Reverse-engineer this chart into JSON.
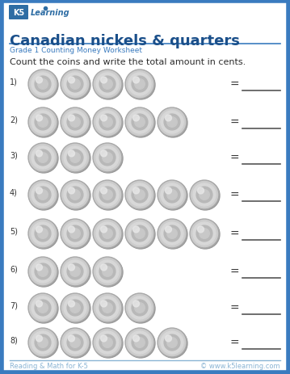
{
  "title": "Canadian nickels & quarters",
  "subtitle": "Grade 1 Counting Money Worksheet",
  "instruction": "Count the coins and write the total amount in cents.",
  "footer_left": "Reading & Math for K-5",
  "footer_right": "© www.k5learning.com",
  "background_color": "#ffffff",
  "border_color": "#3a7bbf",
  "title_color": "#1a4f8a",
  "subtitle_color": "#3a7bbf",
  "footer_color": "#8ab4d4",
  "rows": [
    {
      "num": "1)",
      "coins": 4
    },
    {
      "num": "2)",
      "coins": 5
    },
    {
      "num": "3)",
      "coins": 3
    },
    {
      "num": "4)",
      "coins": 6
    },
    {
      "num": "5)",
      "coins": 6
    },
    {
      "num": "6)",
      "coins": 3
    },
    {
      "num": "7)",
      "coins": 4
    },
    {
      "num": "8)",
      "coins": 5
    }
  ],
  "logo_box_color": "#2e6da4",
  "logo_text_color": "#ffffff",
  "eq_sign_color": "#333333",
  "line_color": "#555555",
  "num_label_color": "#333333",
  "instruction_color": "#2c2c2c"
}
